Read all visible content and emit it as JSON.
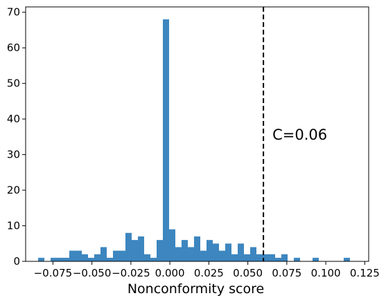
{
  "chart_data": {
    "type": "bar",
    "title": "",
    "xlabel": "Nonconformity score",
    "ylabel": "",
    "xlim": [
      -0.0925,
      0.1275
    ],
    "ylim": [
      0,
      71.5
    ],
    "xticks": [
      -0.075,
      -0.05,
      -0.025,
      0.0,
      0.025,
      0.05,
      0.075,
      0.1,
      0.125
    ],
    "xtick_labels": [
      "−0.075",
      "−0.050",
      "−0.025",
      "0.000",
      "0.025",
      "0.050",
      "0.075",
      "0.100",
      "0.125"
    ],
    "yticks": [
      0,
      10,
      20,
      30,
      40,
      50,
      60,
      70
    ],
    "ytick_labels": [
      "0",
      "10",
      "20",
      "30",
      "40",
      "50",
      "60",
      "70"
    ],
    "bar_color": "#3d86bf",
    "bins": [
      {
        "x0": -0.0845,
        "x1": -0.0805,
        "count": 1
      },
      {
        "x0": -0.0765,
        "x1": -0.0725,
        "count": 1
      },
      {
        "x0": -0.0725,
        "x1": -0.0685,
        "count": 1
      },
      {
        "x0": -0.0685,
        "x1": -0.0645,
        "count": 1
      },
      {
        "x0": -0.0645,
        "x1": -0.0565,
        "count": 3
      },
      {
        "x0": -0.0565,
        "x1": -0.0525,
        "count": 2
      },
      {
        "x0": -0.0525,
        "x1": -0.0485,
        "count": 1
      },
      {
        "x0": -0.0485,
        "x1": -0.0445,
        "count": 2
      },
      {
        "x0": -0.0445,
        "x1": -0.0405,
        "count": 4
      },
      {
        "x0": -0.0405,
        "x1": -0.0365,
        "count": 1
      },
      {
        "x0": -0.0365,
        "x1": -0.0285,
        "count": 3
      },
      {
        "x0": -0.0285,
        "x1": -0.0245,
        "count": 8
      },
      {
        "x0": -0.0245,
        "x1": -0.0205,
        "count": 6
      },
      {
        "x0": -0.0205,
        "x1": -0.0165,
        "count": 7
      },
      {
        "x0": -0.0165,
        "x1": -0.0125,
        "count": 2
      },
      {
        "x0": -0.0125,
        "x1": -0.0085,
        "count": 1
      },
      {
        "x0": -0.0085,
        "x1": -0.0045,
        "count": 6
      },
      {
        "x0": -0.0045,
        "x1": -0.0005,
        "count": 68
      },
      {
        "x0": -0.0005,
        "x1": 0.0035,
        "count": 9
      },
      {
        "x0": 0.0035,
        "x1": 0.0075,
        "count": 4
      },
      {
        "x0": 0.0075,
        "x1": 0.0115,
        "count": 6
      },
      {
        "x0": 0.0115,
        "x1": 0.0155,
        "count": 4
      },
      {
        "x0": 0.0155,
        "x1": 0.0195,
        "count": 7
      },
      {
        "x0": 0.0195,
        "x1": 0.0235,
        "count": 3
      },
      {
        "x0": 0.0235,
        "x1": 0.0275,
        "count": 6
      },
      {
        "x0": 0.0275,
        "x1": 0.0315,
        "count": 5
      },
      {
        "x0": 0.0315,
        "x1": 0.0355,
        "count": 3
      },
      {
        "x0": 0.0355,
        "x1": 0.0395,
        "count": 5
      },
      {
        "x0": 0.0395,
        "x1": 0.0435,
        "count": 2
      },
      {
        "x0": 0.0435,
        "x1": 0.0475,
        "count": 5
      },
      {
        "x0": 0.0475,
        "x1": 0.0515,
        "count": 2
      },
      {
        "x0": 0.0515,
        "x1": 0.0555,
        "count": 4
      },
      {
        "x0": 0.0555,
        "x1": 0.0595,
        "count": 2
      },
      {
        "x0": 0.0595,
        "x1": 0.0675,
        "count": 2
      },
      {
        "x0": 0.0675,
        "x1": 0.0715,
        "count": 1
      },
      {
        "x0": 0.0715,
        "x1": 0.0755,
        "count": 2
      },
      {
        "x0": 0.0795,
        "x1": 0.0835,
        "count": 1
      },
      {
        "x0": 0.0915,
        "x1": 0.0955,
        "count": 1
      },
      {
        "x0": 0.1115,
        "x1": 0.1155,
        "count": 1
      }
    ],
    "threshold": {
      "x": 0.06,
      "label": "C=0.06",
      "style": "dashed",
      "color": "#000000"
    },
    "grid": false,
    "legend": "none"
  }
}
